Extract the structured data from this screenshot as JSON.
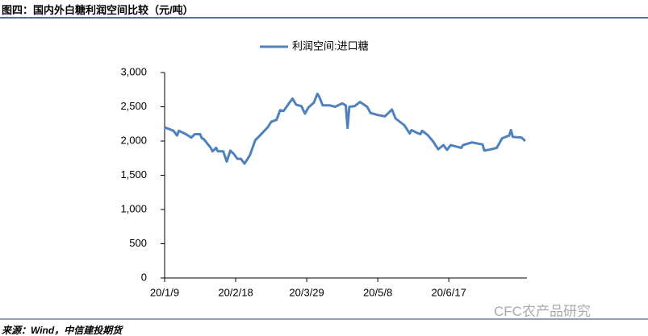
{
  "chart_data": {
    "type": "line",
    "title": "图四：国内外白糖利润空间比较（元/吨）",
    "source": "来源：Wind，中信建投期货",
    "watermark": "CFC农产品研究",
    "x": [
      "20/1/9",
      "20/1/14",
      "20/1/16",
      "20/1/17",
      "20/1/21",
      "20/1/24",
      "20/1/26",
      "20/1/29",
      "20/1/30",
      "20/1/31",
      "20/2/4",
      "20/2/5",
      "20/2/7",
      "20/2/8",
      "20/2/11",
      "20/2/13",
      "20/2/15",
      "20/2/17",
      "20/2/19",
      "20/2/21",
      "20/2/23",
      "20/2/26",
      "20/2/29",
      "20/3/3",
      "20/3/7",
      "20/3/9",
      "20/3/12",
      "20/3/14",
      "20/3/16",
      "20/3/19",
      "20/3/21",
      "20/3/23",
      "20/3/26",
      "20/3/28",
      "20/3/30",
      "20/4/2",
      "20/4/4",
      "20/4/5",
      "20/4/7",
      "20/4/11",
      "20/4/14",
      "20/4/18",
      "20/4/20",
      "20/4/21",
      "20/4/22",
      "20/4/25",
      "20/4/28",
      "20/5/2",
      "20/5/4",
      "20/5/8",
      "20/5/12",
      "20/5/16",
      "20/5/18",
      "20/5/23",
      "20/5/26",
      "20/5/27",
      "20/5/30",
      "20/6/1",
      "20/6/2",
      "20/6/5",
      "20/6/8",
      "20/6/11",
      "20/6/14",
      "20/6/16",
      "20/6/18",
      "20/6/21",
      "20/6/24",
      "20/6/25",
      "20/6/30",
      "20/7/6",
      "20/7/7",
      "20/7/11",
      "20/7/14",
      "20/7/17",
      "20/7/21",
      "20/7/22",
      "20/7/23",
      "20/7/28",
      "20/7/30"
    ],
    "series": [
      {
        "name": "利润空间:进口糖",
        "color": "#4f81bd",
        "values": [
          2200,
          2150,
          2080,
          2150,
          2100,
          2050,
          2100,
          2100,
          2040,
          2030,
          1900,
          1850,
          1900,
          1850,
          1850,
          1700,
          1860,
          1810,
          1740,
          1740,
          1670,
          1790,
          2010,
          2090,
          2200,
          2280,
          2310,
          2450,
          2440,
          2550,
          2620,
          2530,
          2510,
          2400,
          2490,
          2560,
          2690,
          2650,
          2520,
          2520,
          2500,
          2550,
          2520,
          2190,
          2500,
          2510,
          2570,
          2500,
          2410,
          2380,
          2360,
          2460,
          2330,
          2230,
          2110,
          2160,
          2120,
          2100,
          2150,
          2090,
          2000,
          1880,
          1940,
          1870,
          1940,
          1920,
          1900,
          1940,
          1980,
          1950,
          1860,
          1880,
          1900,
          2040,
          2080,
          2160,
          2060,
          2050,
          2000
        ]
      }
    ],
    "xlim": [
      "20/1/9",
      "20/7/31"
    ],
    "xticks": [
      "20/1/9",
      "20/2/18",
      "20/3/29",
      "20/5/8",
      "20/6/17"
    ],
    "ylim": [
      0,
      3000
    ],
    "yticks": [
      0,
      500,
      {
        "value": 1000,
        "label": "1,000"
      },
      {
        "value": 1500,
        "label": "1,500"
      },
      {
        "value": 2000,
        "label": "2,000"
      },
      {
        "value": 2500,
        "label": "2,500"
      },
      {
        "value": 3000,
        "label": "3,000"
      }
    ],
    "legend": "top"
  }
}
